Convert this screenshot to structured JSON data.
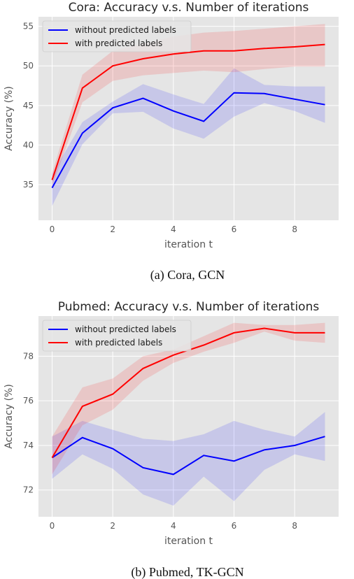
{
  "chart_data": [
    {
      "type": "line",
      "title": "Cora: Accuracy v.s. Number of iterations",
      "xlabel": "iteration t",
      "ylabel": "Accuracy (%)",
      "caption": "(a) Cora, GCN",
      "xlim": [
        -0.45,
        9.45
      ],
      "ylim": [
        30.5,
        56.2
      ],
      "xticks": [
        0,
        2,
        4,
        6,
        8
      ],
      "yticks": [
        35,
        40,
        45,
        50,
        55
      ],
      "grid": true,
      "legend": "top-left",
      "x": [
        0,
        1,
        2,
        3,
        4,
        5,
        6,
        7,
        8,
        9
      ],
      "series": [
        {
          "name": "without predicted labels",
          "color": "#0000ff",
          "values": [
            34.6,
            41.5,
            44.7,
            45.9,
            44.3,
            43.0,
            46.6,
            46.5,
            45.8,
            45.1
          ],
          "lower": [
            32.3,
            40.1,
            44.0,
            44.2,
            42.1,
            40.8,
            43.6,
            45.3,
            44.3,
            42.8
          ],
          "upper": [
            36.3,
            42.9,
            45.5,
            47.7,
            46.4,
            45.2,
            49.7,
            47.6,
            47.4,
            47.4
          ]
        },
        {
          "name": "with predicted labels",
          "color": "#ff0000",
          "values": [
            35.6,
            47.2,
            50.0,
            50.9,
            51.5,
            51.9,
            51.9,
            52.2,
            52.4,
            52.7
          ],
          "lower": [
            34.8,
            45.4,
            48.1,
            48.8,
            49.1,
            49.4,
            49.2,
            49.6,
            49.9,
            49.9
          ],
          "upper": [
            36.5,
            48.9,
            51.9,
            52.8,
            53.7,
            54.2,
            54.4,
            54.7,
            55.0,
            55.3
          ]
        }
      ]
    },
    {
      "type": "line",
      "title": "Pubmed: Accuracy v.s. Number of iterations",
      "xlabel": "iteration t",
      "ylabel": "Accuracy (%)",
      "caption": "(b) Pubmed, TK-GCN",
      "xlim": [
        -0.45,
        9.45
      ],
      "ylim": [
        70.8,
        79.8
      ],
      "xticks": [
        0,
        2,
        4,
        6,
        8
      ],
      "yticks": [
        72,
        74,
        76,
        78
      ],
      "grid": true,
      "legend": "top-left",
      "x": [
        0,
        1,
        2,
        3,
        4,
        5,
        6,
        7,
        8,
        9
      ],
      "series": [
        {
          "name": "without predicted labels",
          "color": "#0000ff",
          "values": [
            73.45,
            74.35,
            73.85,
            73.0,
            72.7,
            73.55,
            73.3,
            73.8,
            74.0,
            74.4
          ],
          "lower": [
            72.5,
            73.6,
            72.95,
            71.8,
            71.3,
            72.6,
            71.5,
            72.9,
            73.6,
            73.3
          ],
          "upper": [
            74.4,
            75.1,
            74.7,
            74.3,
            74.2,
            74.5,
            75.1,
            74.7,
            74.4,
            75.5
          ]
        },
        {
          "name": "with predicted labels",
          "color": "#ff0000",
          "values": [
            73.45,
            75.75,
            76.3,
            77.45,
            78.05,
            78.5,
            79.05,
            79.25,
            79.05,
            79.05
          ],
          "lower": [
            72.7,
            74.9,
            75.6,
            76.9,
            77.7,
            78.2,
            78.6,
            79.1,
            78.7,
            78.6
          ],
          "upper": [
            74.4,
            76.6,
            77.0,
            78.0,
            78.3,
            78.9,
            79.5,
            79.4,
            79.4,
            79.5
          ]
        }
      ]
    }
  ]
}
